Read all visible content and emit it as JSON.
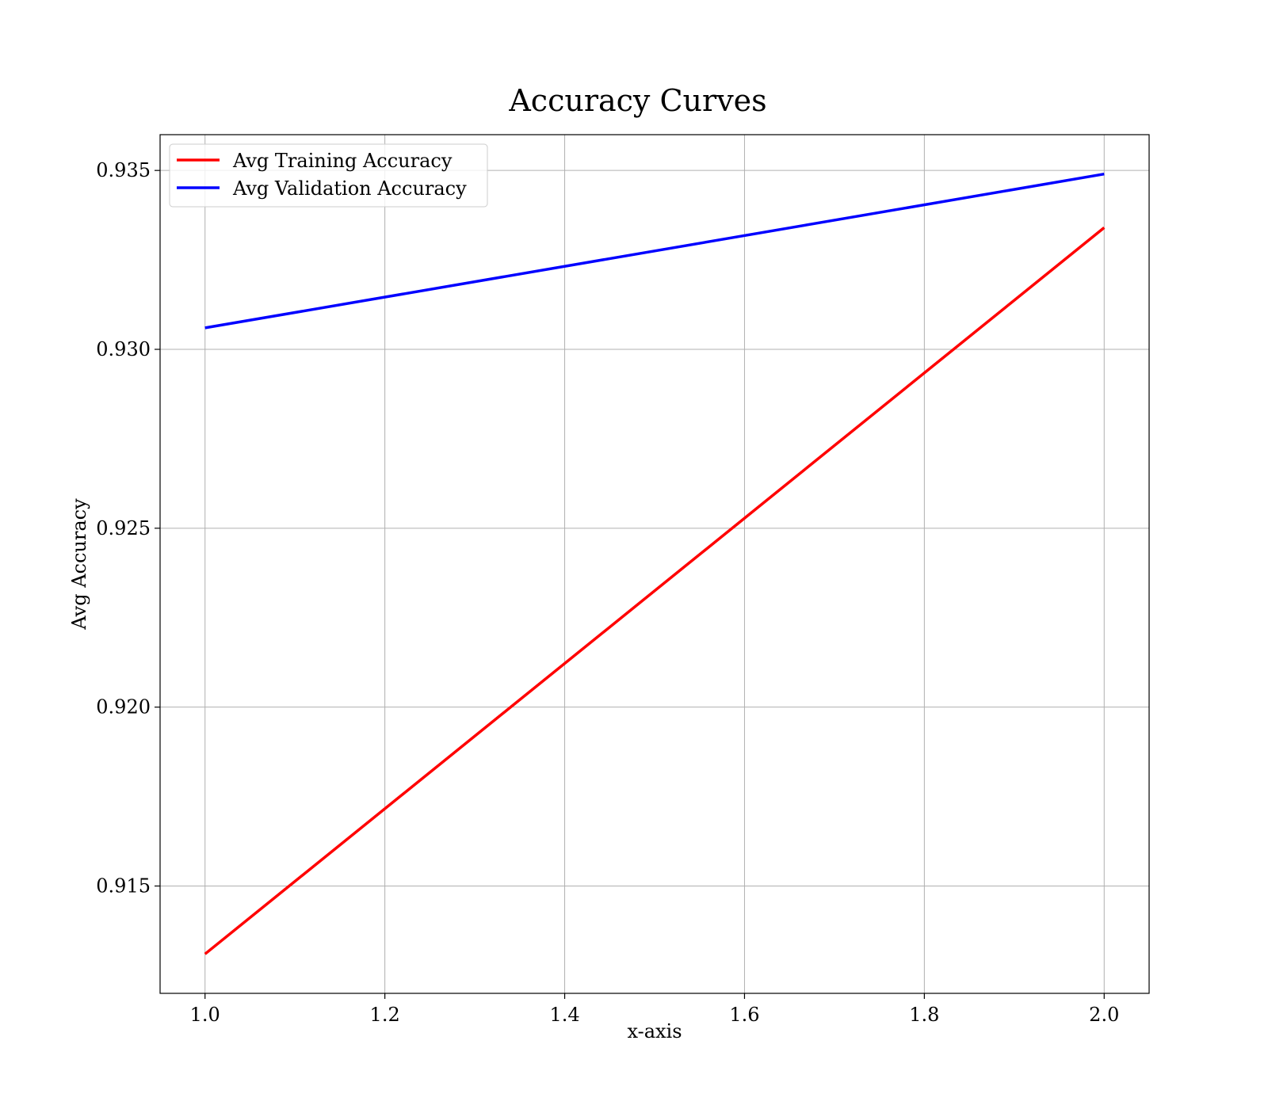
{
  "chart_data": {
    "type": "line",
    "title": "Accuracy Curves",
    "xlabel": "x-axis",
    "ylabel": "Avg Accuracy",
    "x": [
      1.0,
      2.0
    ],
    "xlim": [
      0.95,
      2.05
    ],
    "ylim": [
      0.912,
      0.936
    ],
    "xticks": [
      1.0,
      1.2,
      1.4,
      1.6,
      1.8,
      2.0
    ],
    "xtick_labels": [
      "1.0",
      "1.2",
      "1.4",
      "1.6",
      "1.8",
      "2.0"
    ],
    "yticks": [
      0.915,
      0.92,
      0.925,
      0.93,
      0.935
    ],
    "ytick_labels": [
      "0.915",
      "0.920",
      "0.925",
      "0.930",
      "0.935"
    ],
    "grid": true,
    "legend_position": "top-left",
    "series": [
      {
        "name": "Avg Training Accuracy",
        "color": "#ff0000",
        "values": [
          0.9131,
          0.9334
        ]
      },
      {
        "name": "Avg Validation Accuracy",
        "color": "#0000ff",
        "values": [
          0.9306,
          0.9349
        ]
      }
    ]
  }
}
